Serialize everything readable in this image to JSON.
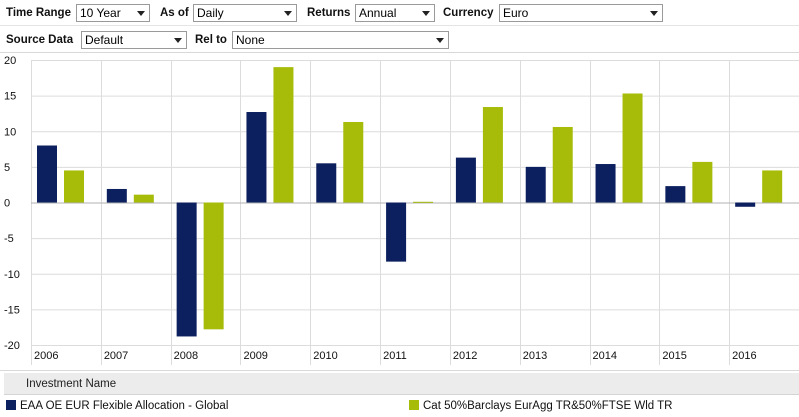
{
  "controls": {
    "time_range_label": "Time Range",
    "time_range_value": "10 Year",
    "as_of_label": "As of",
    "as_of_value": "Daily",
    "returns_label": "Returns",
    "returns_value": "Annual",
    "currency_label": "Currency",
    "currency_value": "Euro",
    "source_data_label": "Source Data",
    "source_data_value": "Default",
    "rel_to_label": "Rel to",
    "rel_to_value": "None"
  },
  "legend": {
    "header": "Investment Name",
    "items": [
      {
        "label": "EAA OE EUR Flexible Allocation - Global",
        "color": "#0c1f5e"
      },
      {
        "label": "Cat 50%Barclays EurAgg TR&50%FTSE Wld TR",
        "color": "#a6bc09"
      }
    ]
  },
  "chart_data": {
    "type": "bar",
    "categories": [
      "2006",
      "2007",
      "2008",
      "2009",
      "2010",
      "2011",
      "2012",
      "2013",
      "2014",
      "2015",
      "2016"
    ],
    "series": [
      {
        "name": "EAA OE EUR Flexible Allocation - Global",
        "color": "#0c1f5e",
        "values": [
          8.0,
          1.9,
          -18.8,
          12.7,
          5.5,
          -8.3,
          6.3,
          5.0,
          5.4,
          2.3,
          -0.6
        ]
      },
      {
        "name": "Cat 50%Barclays EurAgg TR&50%FTSE Wld TR",
        "color": "#a6bc09",
        "values": [
          4.5,
          1.1,
          -17.8,
          19.0,
          11.3,
          0.1,
          13.4,
          10.6,
          15.3,
          5.7,
          4.5
        ]
      }
    ],
    "y_ticks": [
      20,
      15,
      10,
      5,
      0,
      -5,
      -10,
      -15,
      -20
    ],
    "ylim": [
      -20,
      20
    ],
    "grid": true,
    "legend_position": "bottom"
  }
}
